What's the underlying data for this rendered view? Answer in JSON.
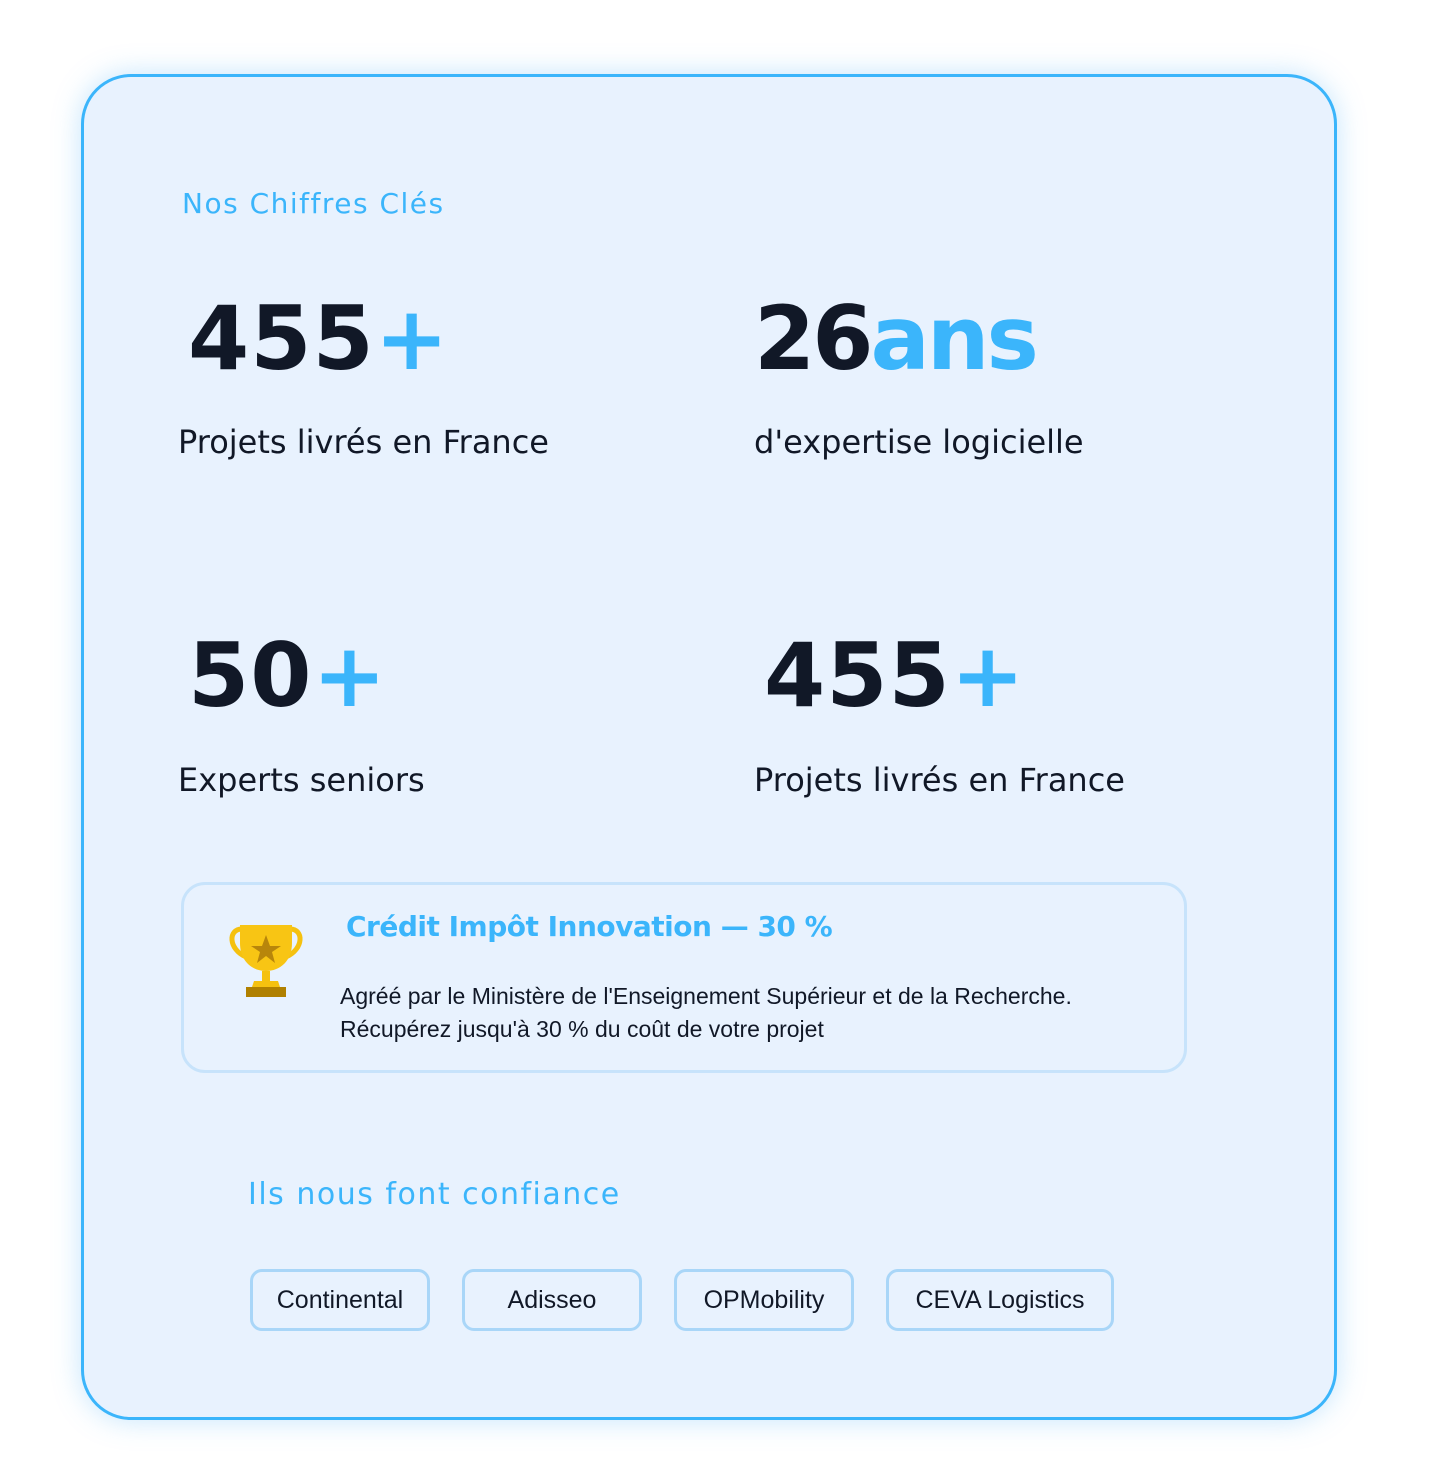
{
  "header": {
    "title": "Nos Chiffres Clés"
  },
  "stats": [
    {
      "value": "455",
      "suffix": "+",
      "label": "Projets livrés en France"
    },
    {
      "value": "26",
      "suffix": "ans",
      "label": "d'expertise logicielle"
    },
    {
      "value": "50",
      "suffix": "+",
      "label": "Experts seniors"
    },
    {
      "value": "455",
      "suffix": "+",
      "label": "Projets livrés en France"
    }
  ],
  "cii": {
    "icon": "trophy-icon",
    "title": "Crédit Impôt Innovation — 30 %",
    "line1": "Agréé par le Ministère de l'Enseignement Supérieur et de la Recherche.",
    "line2": "Récupérez jusqu'à 30 % du coût de votre projet"
  },
  "clients": {
    "title": "Ils nous font confiance",
    "items": [
      "Continental",
      "Adisseo",
      "OPMobility",
      "CEVA Logistics"
    ]
  },
  "colors": {
    "accent": "#3bb5fb",
    "text": "#111827",
    "background": "#e8f2fe"
  }
}
